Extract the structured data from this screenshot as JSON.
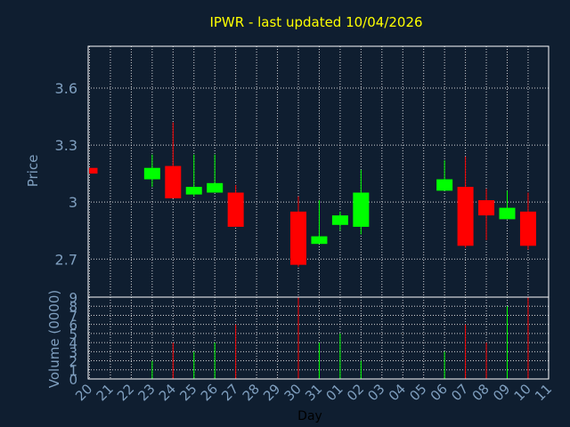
{
  "chart_data": {
    "type": "candlestick",
    "title": "IPWR - last updated 10/04/2026",
    "xlabel": "Day",
    "price_panel": {
      "ylabel": "Price",
      "yticks": [
        "2.7",
        "3",
        "3.3",
        "3.6"
      ],
      "ylim": [
        2.5,
        3.82
      ],
      "grid": true
    },
    "volume_panel": {
      "ylabel": "Volume (0000)",
      "yticks": [
        "0",
        "1",
        "2",
        "3",
        "4",
        "5",
        "6",
        "7",
        "8",
        "9"
      ],
      "ylim": [
        0,
        9
      ],
      "grid": true
    },
    "days": [
      "20",
      "21",
      "22",
      "23",
      "24",
      "25",
      "26",
      "27",
      "28",
      "29",
      "30",
      "31",
      "01",
      "02",
      "03",
      "04",
      "05",
      "06",
      "07",
      "08",
      "09",
      "10",
      "11"
    ],
    "candles": [
      {
        "day": "20",
        "open": 3.18,
        "high": 3.18,
        "low": 3.15,
        "close": 3.15,
        "volume": 0
      },
      {
        "day": "23",
        "open": 3.12,
        "high": 3.25,
        "low": 3.08,
        "close": 3.18,
        "volume": 2
      },
      {
        "day": "24",
        "open": 3.19,
        "high": 3.42,
        "low": 3.02,
        "close": 3.02,
        "volume": 4
      },
      {
        "day": "25",
        "open": 3.04,
        "high": 3.25,
        "low": 3.03,
        "close": 3.08,
        "volume": 3
      },
      {
        "day": "26",
        "open": 3.05,
        "high": 3.25,
        "low": 3.05,
        "close": 3.1,
        "volume": 4
      },
      {
        "day": "27",
        "open": 3.05,
        "high": 3.09,
        "low": 2.87,
        "close": 2.87,
        "volume": 6
      },
      {
        "day": "30",
        "open": 2.95,
        "high": 3.03,
        "low": 2.66,
        "close": 2.67,
        "volume": 9
      },
      {
        "day": "31",
        "open": 2.78,
        "high": 3.01,
        "low": 2.78,
        "close": 2.82,
        "volume": 4
      },
      {
        "day": "01",
        "open": 2.88,
        "high": 2.95,
        "low": 2.85,
        "close": 2.93,
        "volume": 5
      },
      {
        "day": "02",
        "open": 2.87,
        "high": 3.17,
        "low": 2.83,
        "close": 3.05,
        "volume": 2
      },
      {
        "day": "06",
        "open": 3.06,
        "high": 3.22,
        "low": 3.06,
        "close": 3.12,
        "volume": 3
      },
      {
        "day": "07",
        "open": 3.08,
        "high": 3.24,
        "low": 2.76,
        "close": 2.77,
        "volume": 6
      },
      {
        "day": "08",
        "open": 3.01,
        "high": 3.07,
        "low": 2.8,
        "close": 2.93,
        "volume": 4
      },
      {
        "day": "09",
        "open": 2.91,
        "high": 3.06,
        "low": 2.91,
        "close": 2.97,
        "volume": 8
      },
      {
        "day": "10",
        "open": 2.95,
        "high": 3.05,
        "low": 2.75,
        "close": 2.77,
        "volume": 9
      }
    ],
    "colors": {
      "background": "#0f1e30",
      "up": "#00ff00",
      "down": "#ff0000",
      "grid": "#ffffff",
      "axis_text": "#7f9fbf",
      "title": "#ffff00"
    }
  }
}
